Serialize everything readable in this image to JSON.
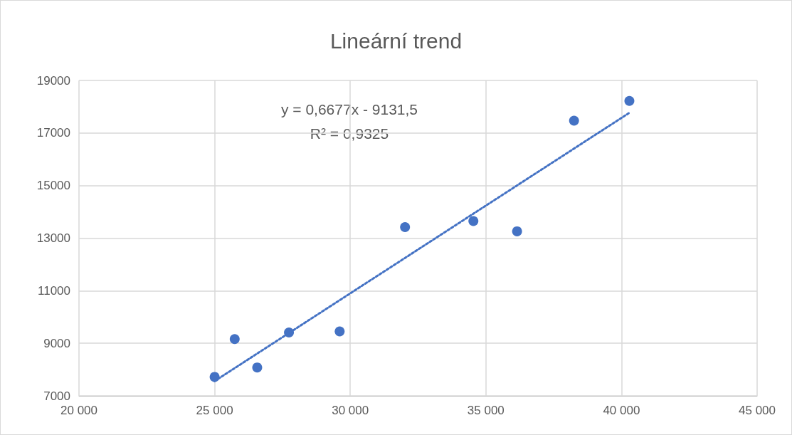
{
  "chart_data": {
    "type": "scatter",
    "title": "Lineární trend",
    "xlim": [
      20000,
      45000
    ],
    "xticks": [
      {
        "value": 20000,
        "label": "20 000"
      },
      {
        "value": 25000,
        "label": "25 000"
      },
      {
        "value": 30000,
        "label": "30 000"
      },
      {
        "value": 35000,
        "label": "35 000"
      },
      {
        "value": 40000,
        "label": "40 000"
      },
      {
        "value": 45000,
        "label": "45 000"
      }
    ],
    "ylim": [
      7000,
      19000
    ],
    "yticks": [
      7000,
      9000,
      11000,
      13000,
      15000,
      17000,
      19000
    ],
    "grid": true,
    "marker": "circle",
    "annotations": [
      "y = 0,6677x - 9131,5",
      "R² = 0,9325"
    ],
    "series": [
      {
        "color": "#4472c4",
        "x": [
          25000,
          25740,
          26570,
          27740,
          29610,
          32020,
          34540,
          36150,
          38250,
          40290
        ],
        "values": [
          7720,
          9160,
          8080,
          9410,
          9450,
          13420,
          13650,
          13260,
          17470,
          18220
        ]
      },
      {
        "type": "line",
        "color": "#4472c4",
        "line_style": "dotted",
        "marker": "none",
        "x": [
          25000,
          40290
        ],
        "values": [
          7560,
          17770
        ]
      }
    ]
  }
}
